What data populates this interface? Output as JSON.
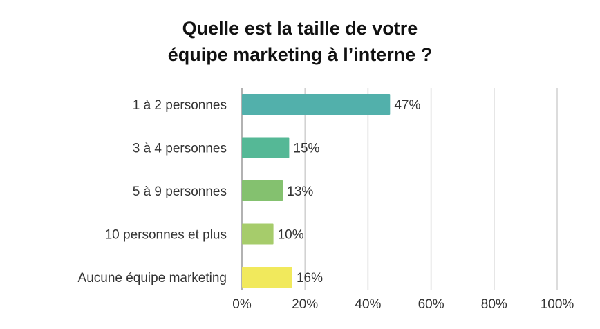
{
  "chart_data": {
    "type": "bar",
    "orientation": "horizontal",
    "title_lines": [
      "Quelle est la taille de votre",
      "équipe marketing à l’interne ?"
    ],
    "categories": [
      "1 à 2 personnes",
      "3 à 4 personnes",
      "5 à 9 personnes",
      "10 personnes et plus",
      "Aucune équipe marketing"
    ],
    "values": [
      47,
      15,
      13,
      10,
      16
    ],
    "value_labels": [
      "47%",
      "15%",
      "13%",
      "10%",
      "16%"
    ],
    "colors": [
      "#52b0ab",
      "#55b896",
      "#84c16f",
      "#a6cc6b",
      "#f1e95c"
    ],
    "xlim": [
      0,
      100
    ],
    "xticks": [
      0,
      20,
      40,
      60,
      80,
      100
    ],
    "xtick_labels": [
      "0%",
      "20%",
      "40%",
      "60%",
      "80%",
      "100%"
    ],
    "grid": true,
    "xlabel": "",
    "ylabel": ""
  }
}
